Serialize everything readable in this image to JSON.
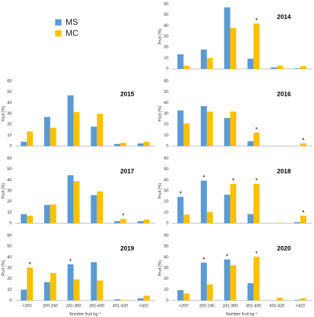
{
  "chart_data": [
    {
      "type": "bar",
      "title": "2014",
      "y_label": "Fruit (%)",
      "ylim": [
        0,
        60
      ],
      "yticks": [
        0,
        10,
        20,
        30,
        40,
        50,
        60
      ],
      "series": [
        {
          "name": "MS",
          "color": "#5b9bd5",
          "values": [
            13.5,
            18,
            57,
            9.5,
            1.5,
            0.5
          ]
        },
        {
          "name": "MC",
          "color": "#ffc000",
          "values": [
            3,
            10,
            38,
            42,
            3,
            2.5
          ]
        }
      ],
      "annotations": [
        {
          "text": "*",
          "index": 3,
          "series": 1
        }
      ]
    },
    {
      "type": "bar",
      "title": "2015",
      "y_label": "Fruit (%)",
      "ylim": [
        0,
        60
      ],
      "yticks": [
        0,
        10,
        20,
        30,
        40,
        50,
        60
      ],
      "series": [
        {
          "color": "#5b9bd5",
          "values": [
            4,
            27,
            47,
            18,
            2,
            2.5
          ]
        },
        {
          "color": "#ffc000",
          "values": [
            13.5,
            17,
            31.5,
            30,
            3,
            4
          ]
        }
      ],
      "annotations": []
    },
    {
      "type": "bar",
      "title": "2016",
      "y_label": "Fruit (%)",
      "ylim": [
        0,
        60
      ],
      "yticks": [
        0,
        10,
        20,
        30,
        40,
        50,
        60
      ],
      "series": [
        {
          "color": "#5b9bd5",
          "values": [
            33,
            37,
            26,
            4.5,
            0,
            0
          ]
        },
        {
          "color": "#ffc000",
          "values": [
            21,
            32,
            32,
            12.5,
            0,
            2.5
          ]
        }
      ],
      "annotations": [
        {
          "text": "*",
          "index": 3,
          "series": 1
        },
        {
          "text": "*",
          "index": 5,
          "series": 1
        }
      ]
    },
    {
      "type": "bar",
      "title": "2017",
      "y_label": "Fruit (%)",
      "ylim": [
        0,
        60
      ],
      "yticks": [
        0,
        10,
        20,
        30,
        40,
        50,
        60
      ],
      "series": [
        {
          "color": "#5b9bd5",
          "values": [
            8.5,
            17,
            44.5,
            26,
            2,
            2
          ]
        },
        {
          "color": "#ffc000",
          "values": [
            7,
            17.5,
            39,
            29.5,
            4,
            3.5
          ]
        }
      ],
      "annotations": [
        {
          "text": "*",
          "index": 4,
          "series": 1
        }
      ]
    },
    {
      "type": "bar",
      "title": "2018",
      "y_label": "Fruit (%)",
      "ylim": [
        0,
        60
      ],
      "yticks": [
        0,
        10,
        20,
        30,
        40,
        50,
        60
      ],
      "series": [
        {
          "color": "#5b9bd5",
          "values": [
            24.5,
            39.5,
            26.5,
            8.5,
            0,
            1
          ]
        },
        {
          "color": "#ffc000",
          "values": [
            8,
            10.5,
            36.5,
            36.5,
            0.5,
            7
          ]
        }
      ],
      "annotations": [
        {
          "text": "*",
          "index": 0,
          "series": 0
        },
        {
          "text": "*",
          "index": 1,
          "series": 0
        },
        {
          "text": "*",
          "index": 2,
          "series": 1
        },
        {
          "text": "*",
          "index": 3,
          "series": 1
        },
        {
          "text": "*",
          "index": 5,
          "series": 1
        }
      ]
    },
    {
      "type": "bar",
      "title": "2019",
      "y_label": "Fruit (%)",
      "x_label": "Number fruit kg⁻¹",
      "ylim": [
        0,
        60
      ],
      "yticks": [
        0,
        10,
        20,
        30,
        40,
        50,
        60
      ],
      "categories": [
        "<200",
        "200-240",
        "241-300",
        "301-400",
        "401-420",
        ">420"
      ],
      "series": [
        {
          "color": "#5b9bd5",
          "values": [
            10,
            17,
            33.5,
            35.5,
            1,
            2
          ]
        },
        {
          "color": "#ffc000",
          "values": [
            30.5,
            25.5,
            19.5,
            18.5,
            0.5,
            4.5
          ]
        }
      ],
      "annotations": [
        {
          "text": "*",
          "index": 0,
          "series": 1
        },
        {
          "text": "*",
          "index": 2,
          "series": 0
        }
      ]
    },
    {
      "type": "bar",
      "title": "2020",
      "y_label": "Fruit (%)",
      "x_label": "Number fruit kg⁻¹",
      "ylim": [
        0,
        60
      ],
      "yticks": [
        0,
        10,
        20,
        30,
        40,
        50,
        60
      ],
      "categories": [
        "<200",
        "200-240",
        "241-300",
        "301-400",
        "401-420",
        ">420"
      ],
      "series": [
        {
          "color": "#5b9bd5",
          "values": [
            9.5,
            35,
            38,
            16,
            0,
            0.5
          ]
        },
        {
          "color": "#ffc000",
          "values": [
            6.5,
            15,
            32.5,
            40.5,
            2.5,
            2
          ]
        }
      ],
      "annotations": [
        {
          "text": "*",
          "index": 1,
          "series": 0
        },
        {
          "text": "*",
          "index": 2,
          "series": 0
        },
        {
          "text": "*",
          "index": 3,
          "series": 1
        }
      ]
    }
  ]
}
